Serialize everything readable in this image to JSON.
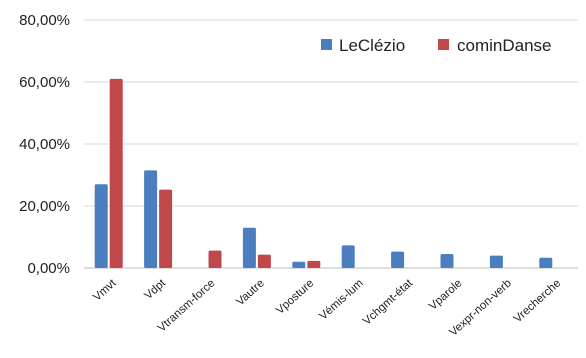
{
  "chart_data": {
    "type": "bar",
    "categories": [
      "Vmvt",
      "Vdpt",
      "Vtransm-force",
      "Vautre",
      "Vposture",
      "Vémis-lum",
      "Vchgmt-état",
      "Vparole",
      "Vexpr-non-verb",
      "Vrecherche"
    ],
    "series": [
      {
        "name": "LeClézio",
        "color": "#4a7ebf",
        "values": [
          27.0,
          31.5,
          null,
          13.0,
          2.0,
          7.3,
          5.3,
          4.5,
          4.0,
          3.3
        ]
      },
      {
        "name": "cominDanse",
        "color": "#c0484a",
        "values": [
          61.0,
          25.3,
          5.6,
          4.3,
          2.3,
          null,
          null,
          null,
          null,
          null
        ]
      }
    ],
    "ylim": [
      0,
      80
    ],
    "yticks": [
      "0,00%",
      "20,00%",
      "40,00%",
      "60,00%",
      "80,00%"
    ],
    "ytick_values": [
      0,
      20,
      40,
      60,
      80
    ],
    "grid": true,
    "legend": "top-right",
    "title": "",
    "xlabel": "",
    "ylabel": ""
  }
}
